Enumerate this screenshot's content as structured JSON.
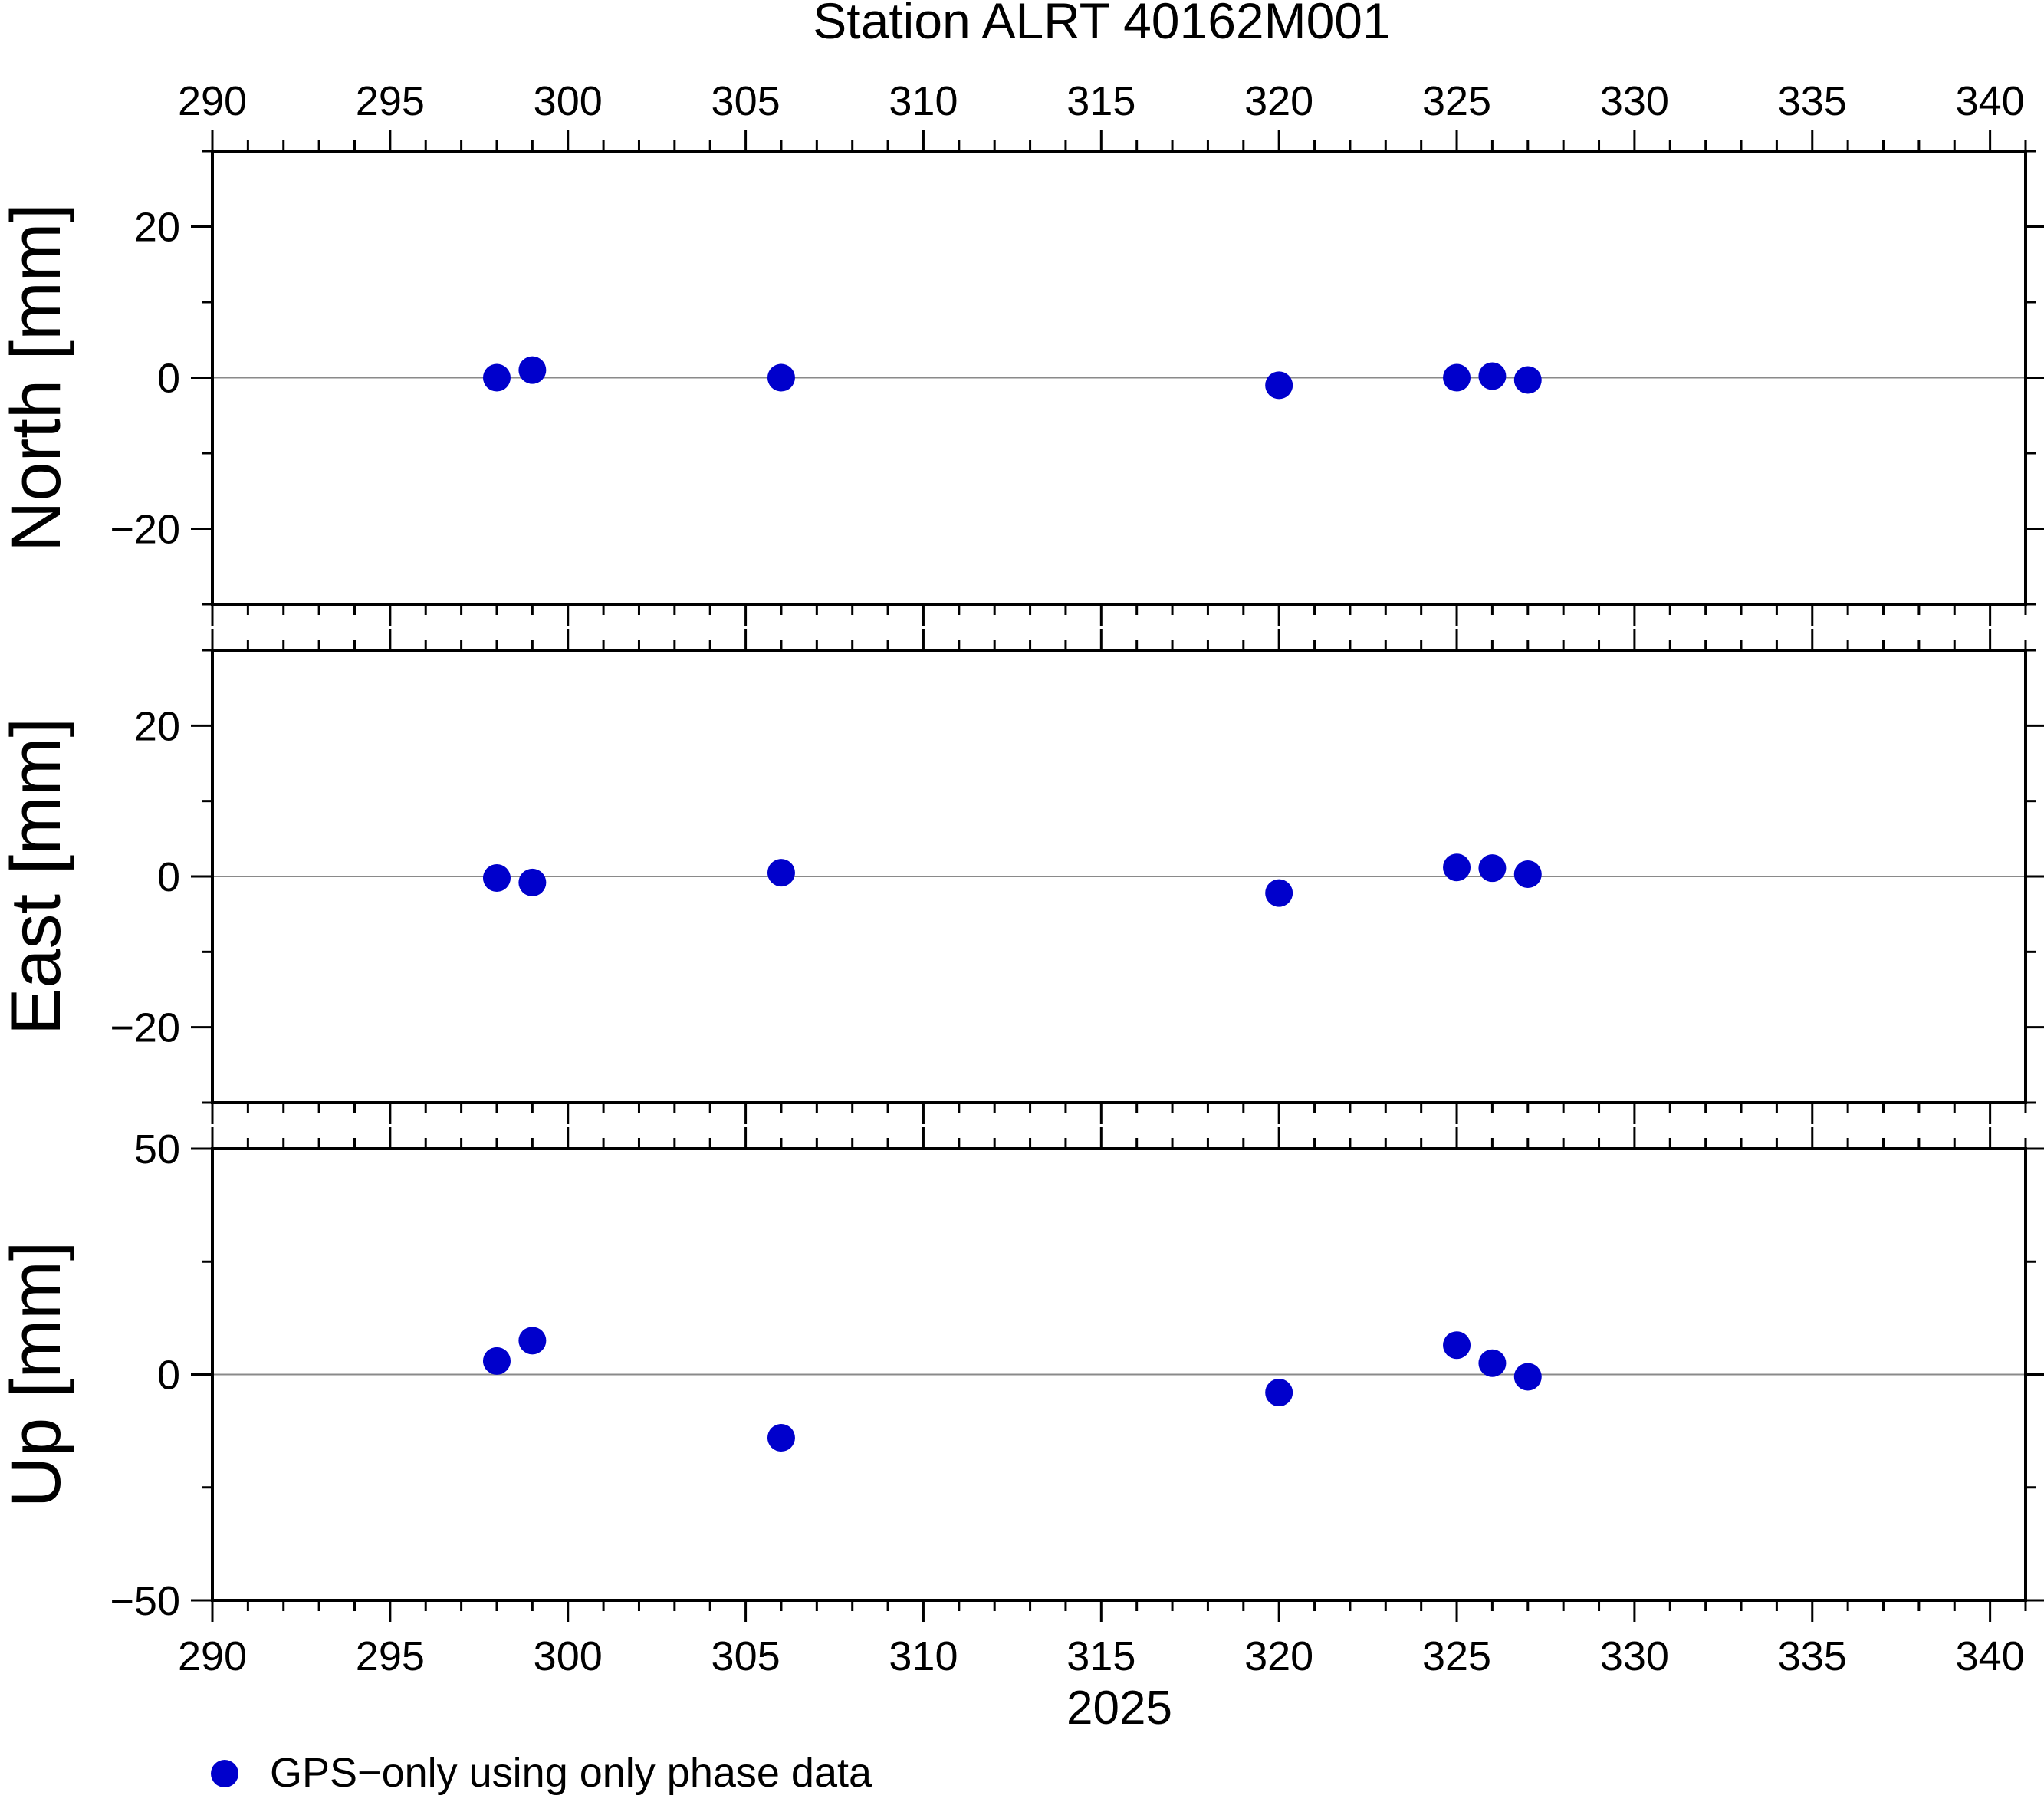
{
  "chart_data": {
    "type": "scatter",
    "title": "Station ALRT 40162M001",
    "xlabel": "2025",
    "x_ticks": [
      290,
      295,
      300,
      305,
      310,
      315,
      320,
      325,
      330,
      335,
      340
    ],
    "xlim": [
      290,
      341
    ],
    "marker_color": "#0000cc",
    "legend": {
      "label": "GPS−only using only phase data",
      "position": "bottom-left"
    },
    "panels": [
      {
        "name": "north",
        "ylabel": "North [mm]",
        "ylim": [
          -30,
          30
        ],
        "y_ticks": [
          20,
          0,
          -20
        ],
        "y_tick_labels": [
          "20",
          "0",
          "−20"
        ],
        "x": [
          298,
          299,
          306,
          320,
          325,
          326,
          327
        ],
        "y": [
          0.0,
          1.0,
          0.0,
          -1.0,
          0.0,
          0.2,
          -0.3
        ]
      },
      {
        "name": "east",
        "ylabel": "East [mm]",
        "ylim": [
          -30,
          30
        ],
        "y_ticks": [
          20,
          0,
          -20
        ],
        "y_tick_labels": [
          "20",
          "0",
          "−20"
        ],
        "x": [
          298,
          299,
          306,
          320,
          325,
          326,
          327
        ],
        "y": [
          -0.2,
          -0.8,
          0.5,
          -2.2,
          1.2,
          1.1,
          0.3
        ]
      },
      {
        "name": "up",
        "ylabel": "Up [mm]",
        "ylim": [
          -50,
          50
        ],
        "y_ticks": [
          50,
          0,
          -50
        ],
        "y_tick_labels": [
          "50",
          "0",
          "−50"
        ],
        "x": [
          298,
          299,
          306,
          320,
          325,
          326,
          327
        ],
        "y": [
          3.0,
          7.5,
          -14.0,
          -4.0,
          6.5,
          2.5,
          -0.5
        ]
      }
    ]
  }
}
